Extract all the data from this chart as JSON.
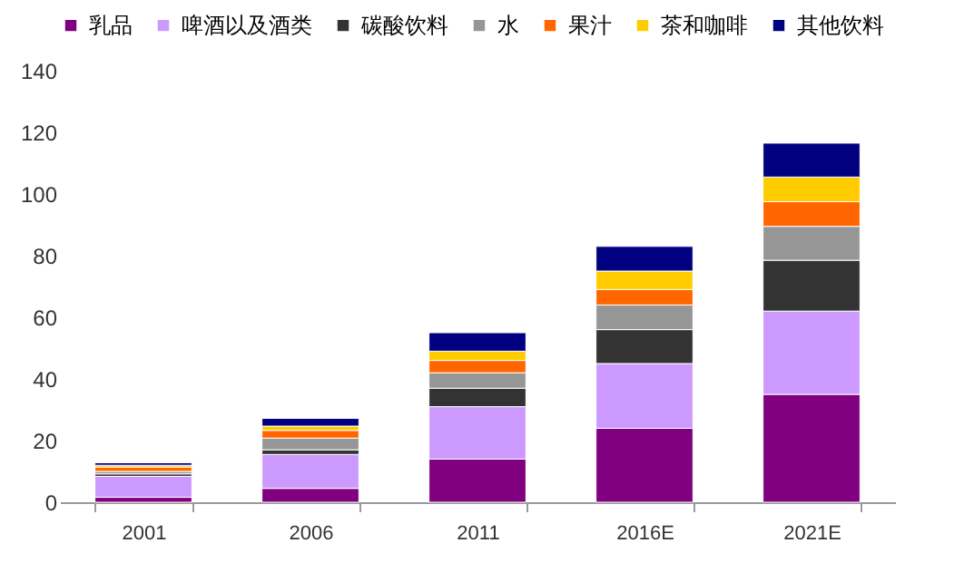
{
  "chart_data": {
    "type": "bar",
    "stacked": true,
    "legend": "top",
    "grid": false,
    "categories": [
      "2001",
      "2006",
      "2011",
      "2016E",
      "2021E"
    ],
    "ylim": [
      0,
      140
    ],
    "yticks": [
      0,
      20,
      40,
      60,
      80,
      100,
      120,
      140
    ],
    "series": [
      {
        "name": "乳品",
        "color": "#800080",
        "values": [
          1.6,
          4.5,
          14,
          24,
          35
        ]
      },
      {
        "name": "啤酒以及酒类",
        "color": "#cc99ff",
        "values": [
          6.8,
          11,
          17,
          21,
          27
        ]
      },
      {
        "name": "碳酸饮料",
        "color": "#333333",
        "values": [
          0.8,
          1.5,
          6,
          11,
          16.5
        ]
      },
      {
        "name": "水",
        "color": "#969696",
        "values": [
          0.8,
          3.8,
          5,
          8,
          11
        ]
      },
      {
        "name": "果汁",
        "color": "#ff6600",
        "values": [
          1.4,
          2.5,
          4,
          5,
          8
        ]
      },
      {
        "name": "茶和咖啡",
        "color": "#ffcc00",
        "values": [
          0.6,
          1.4,
          3,
          6,
          8
        ]
      },
      {
        "name": "其他饮料",
        "color": "#000080",
        "values": [
          0.8,
          2.5,
          6,
          8,
          11
        ]
      }
    ]
  }
}
